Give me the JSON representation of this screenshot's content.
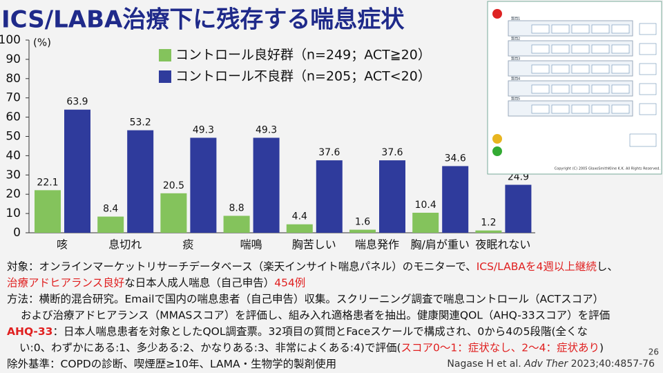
{
  "chart_data": {
    "type": "bar",
    "title": "ICS/LABA治療下に残存する喘息症状",
    "y_label": "(%)",
    "categories": [
      "咳",
      "息切れ",
      "痰",
      "喘鳴",
      "胸苦しい",
      "喘息発作",
      "胸/肩が重い",
      "夜眠れない"
    ],
    "series": [
      {
        "name": "コントロール良好群（n=249；ACT≧20）",
        "color": "#84c35c",
        "values": [
          22.1,
          8.4,
          20.5,
          8.8,
          4.4,
          1.6,
          10.4,
          1.2
        ]
      },
      {
        "name": "コントロール不良群（n=205；ACT<20）",
        "color": "#2f3b9c",
        "values": [
          63.9,
          53.2,
          49.3,
          49.3,
          37.6,
          37.6,
          34.6,
          24.9
        ]
      }
    ],
    "ylim": [
      0,
      100
    ],
    "yticks": [
      0,
      10,
      20,
      30,
      40,
      50,
      60,
      70,
      80,
      90,
      100
    ],
    "grid": false
  },
  "questionnaire": {
    "questions": [
      "質問1",
      "質問2",
      "質問3",
      "質問4",
      "質問5"
    ],
    "copyright": "Copyright (C) 2005 GlaxoSmithKline K.K. All Rights Reserved."
  },
  "notes": [
    [
      {
        "text": "対象：オンラインマーケットリサーチデータベース（楽天インサイト喘息パネル）のモニターで、",
        "color": "#111111"
      },
      {
        "text": "ICS/LABAを4週以上継続",
        "color": "#e02020"
      },
      {
        "text": "し、",
        "color": "#111111"
      }
    ],
    [
      {
        "text": "治療アドヒアランス良好",
        "color": "#e02020"
      },
      {
        "text": "な日本人成人喘息（自己申告）",
        "color": "#111111"
      },
      {
        "text": "454例",
        "color": "#e02020"
      }
    ],
    [
      {
        "text": "方法：横断的混合研究。Emailで国内の喘息患者（自己申告）収集。スクリーニング調査で喘息コントロール（ACTスコア）",
        "color": "#111111"
      }
    ],
    [
      {
        "text": "および治療アドヒアランス（MMASスコア）を評価し、組み入れ適格患者を抽出。健康関連QOL（AHQ-33スコア）を評価",
        "color": "#111111"
      }
    ],
    [
      {
        "text": "AHQ-33",
        "color": "#e02020"
      },
      {
        "text": "：日本人喘息患者を対象としたQOL調査票。32項目の質問とFaceスケールで構成され、0から4の5段階(全くな",
        "color": "#111111"
      }
    ],
    [
      {
        "text": "い:0、わずかにある:1、多少ある:2、かなりある:3、非常によくある:4)で評価(",
        "color": "#111111"
      },
      {
        "text": "スコア0〜1：症状なし、2〜4：症状あり",
        "color": "#e02020"
      },
      {
        "text": ")",
        "color": "#111111"
      }
    ],
    [
      {
        "text": "除外基準：COPDの診断、喫煙歴≥10年、LAMA・生物学的製剤使用",
        "color": "#111111"
      }
    ]
  ],
  "citation": {
    "authors": "Nagase H et al. ",
    "journal": "Adv Ther",
    "ref": " 2023;40:4857-76"
  },
  "page_number": "26"
}
